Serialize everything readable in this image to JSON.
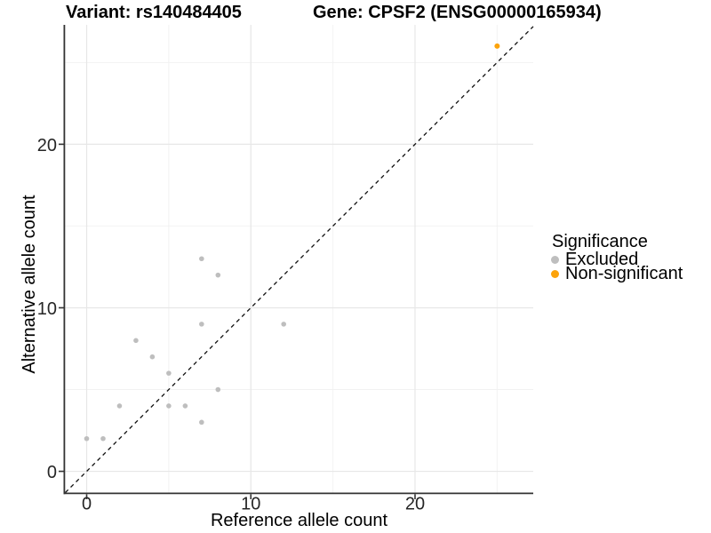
{
  "header": {
    "variant_title": "Variant: rs140484405",
    "gene_title": "Gene: CPSF2 (ENSG00000165934)"
  },
  "chart_data": {
    "type": "scatter",
    "title": "Variant: rs140484405  |  Gene: CPSF2 (ENSG00000165934)",
    "xlabel": "Reference allele count",
    "ylabel": "Alternative allele count",
    "xlim": [
      -1.3,
      27.2
    ],
    "ylim": [
      -1.3,
      27.3
    ],
    "x_major_ticks": [
      0,
      10,
      20
    ],
    "y_major_ticks": [
      0,
      10,
      20
    ],
    "x_minor_gridlines": [
      5,
      15,
      25
    ],
    "y_minor_gridlines": [
      5,
      15,
      25
    ],
    "grid": "major-and-minor",
    "legend": {
      "title": "Significance",
      "position": "right",
      "entries": [
        "Excluded",
        "Non-significant"
      ]
    },
    "identity_line": {
      "type": "y-equals-x",
      "style": "dashed",
      "color": "#111111"
    },
    "series": [
      {
        "name": "Excluded",
        "color": "#BEBEBE",
        "point_radius": 2.8,
        "points": [
          [
            0,
            2
          ],
          [
            1,
            2
          ],
          [
            2,
            4
          ],
          [
            3,
            8
          ],
          [
            4,
            7
          ],
          [
            5,
            4
          ],
          [
            5,
            6
          ],
          [
            6,
            4
          ],
          [
            7,
            3
          ],
          [
            7,
            9
          ],
          [
            7,
            13
          ],
          [
            8,
            5
          ],
          [
            8,
            12
          ],
          [
            12,
            9
          ]
        ]
      },
      {
        "name": "Non-significant",
        "color": "#FCA30B",
        "point_radius": 3.0,
        "points": [
          [
            25,
            26
          ]
        ]
      }
    ],
    "colors": {
      "background": "#FFFFFF",
      "major_grid": "#E7E7E7",
      "minor_grid": "#F2F2F2",
      "axis_line": "#333333",
      "tick_text": "#262626"
    }
  }
}
